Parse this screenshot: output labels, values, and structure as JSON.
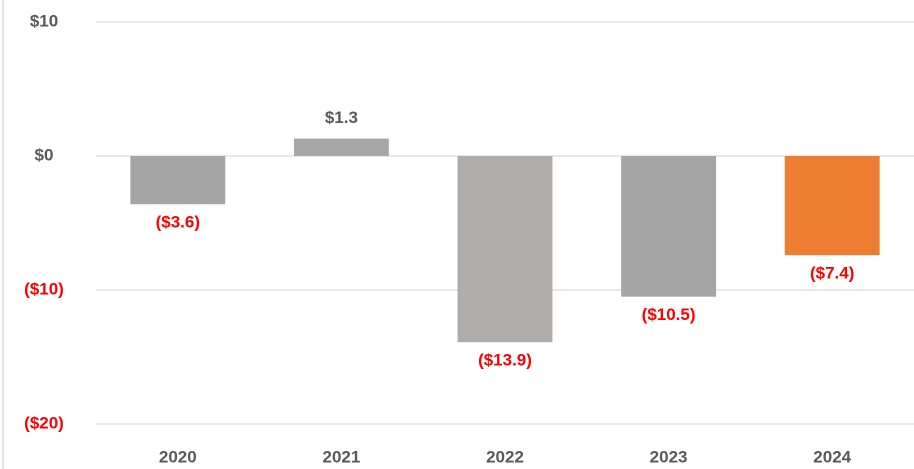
{
  "chart_data": {
    "type": "bar",
    "categories": [
      "2020",
      "2021",
      "2022",
      "2023",
      "2024"
    ],
    "values": [
      -3.6,
      1.3,
      -13.9,
      -10.5,
      -7.4
    ],
    "value_labels": [
      "($3.6)",
      "$1.3",
      "($13.9)",
      "($10.5)",
      "($7.4)"
    ],
    "colors": [
      "#a5a5a5",
      "#a9a7a5",
      "#afacaa",
      "#a5a5a5",
      "#ed7d31"
    ],
    "negative_label_color": "#ff0000",
    "label_color": "#595959",
    "ylim": [
      -20,
      10
    ],
    "yticks": [
      {
        "value": 10,
        "label": "$10"
      },
      {
        "value": 0,
        "label": "$0"
      },
      {
        "value": -10,
        "label": "($10)"
      },
      {
        "value": -20,
        "label": "($20)"
      }
    ],
    "grid": true
  }
}
